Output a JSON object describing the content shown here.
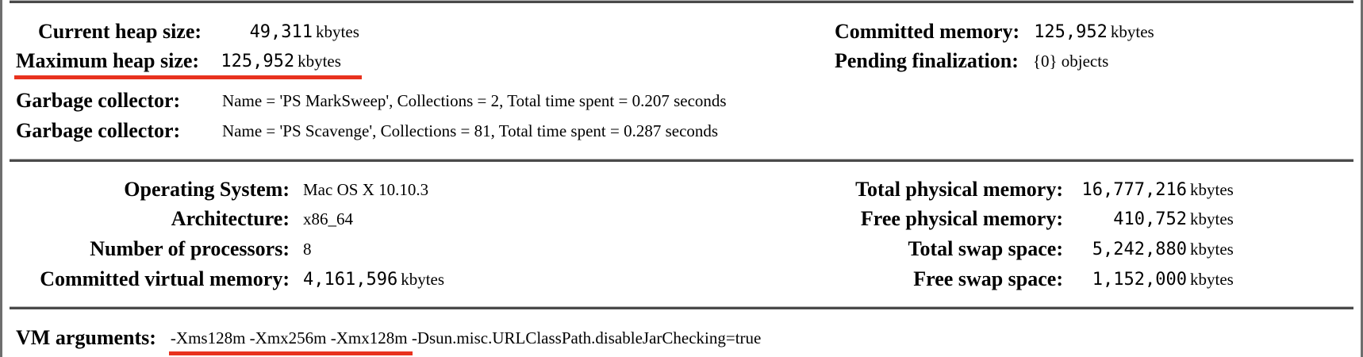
{
  "memory": {
    "current_heap": {
      "label": "Current heap size:",
      "value": "49,311",
      "unit": "kbytes"
    },
    "maximum_heap": {
      "label": "Maximum heap size:",
      "value": "125,952",
      "unit": "kbytes"
    },
    "committed_memory": {
      "label": "Committed memory:",
      "value": "125,952",
      "unit": "kbytes"
    },
    "pending_finalization": {
      "label": "Pending finalization:",
      "value": "{0} objects"
    },
    "garbage_collectors": [
      {
        "label": "Garbage collector:",
        "value": "Name = 'PS MarkSweep', Collections = 2, Total time spent = 0.207 seconds"
      },
      {
        "label": "Garbage collector:",
        "value": "Name = 'PS Scavenge', Collections = 81, Total time spent = 0.287 seconds"
      }
    ]
  },
  "system": {
    "operating_system": {
      "label": "Operating System:",
      "value": "Mac OS X 10.10.3"
    },
    "architecture": {
      "label": "Architecture:",
      "value": "x86_64"
    },
    "processors": {
      "label": "Number of processors:",
      "value": "8"
    },
    "committed_virtual": {
      "label": "Committed virtual memory:",
      "value": "4,161,596",
      "unit": "kbytes"
    },
    "total_physical": {
      "label": "Total physical memory:",
      "value": "16,777,216",
      "unit": "kbytes"
    },
    "free_physical": {
      "label": "Free physical memory:",
      "value": "410,752",
      "unit": "kbytes"
    },
    "total_swap": {
      "label": "Total swap space:",
      "value": "5,242,880",
      "unit": "kbytes"
    },
    "free_swap": {
      "label": "Free swap space:",
      "value": "1,152,000",
      "unit": "kbytes"
    }
  },
  "vm": {
    "label": "VM arguments:",
    "args_highlighted": "-Xms128m -Xmx256m -Xmx128m",
    "args_rest": " -Dsun.misc.URLClassPath.disableJarChecking=true"
  },
  "colors": {
    "highlight": "#e8321e",
    "rule": "#4a4a4a"
  }
}
